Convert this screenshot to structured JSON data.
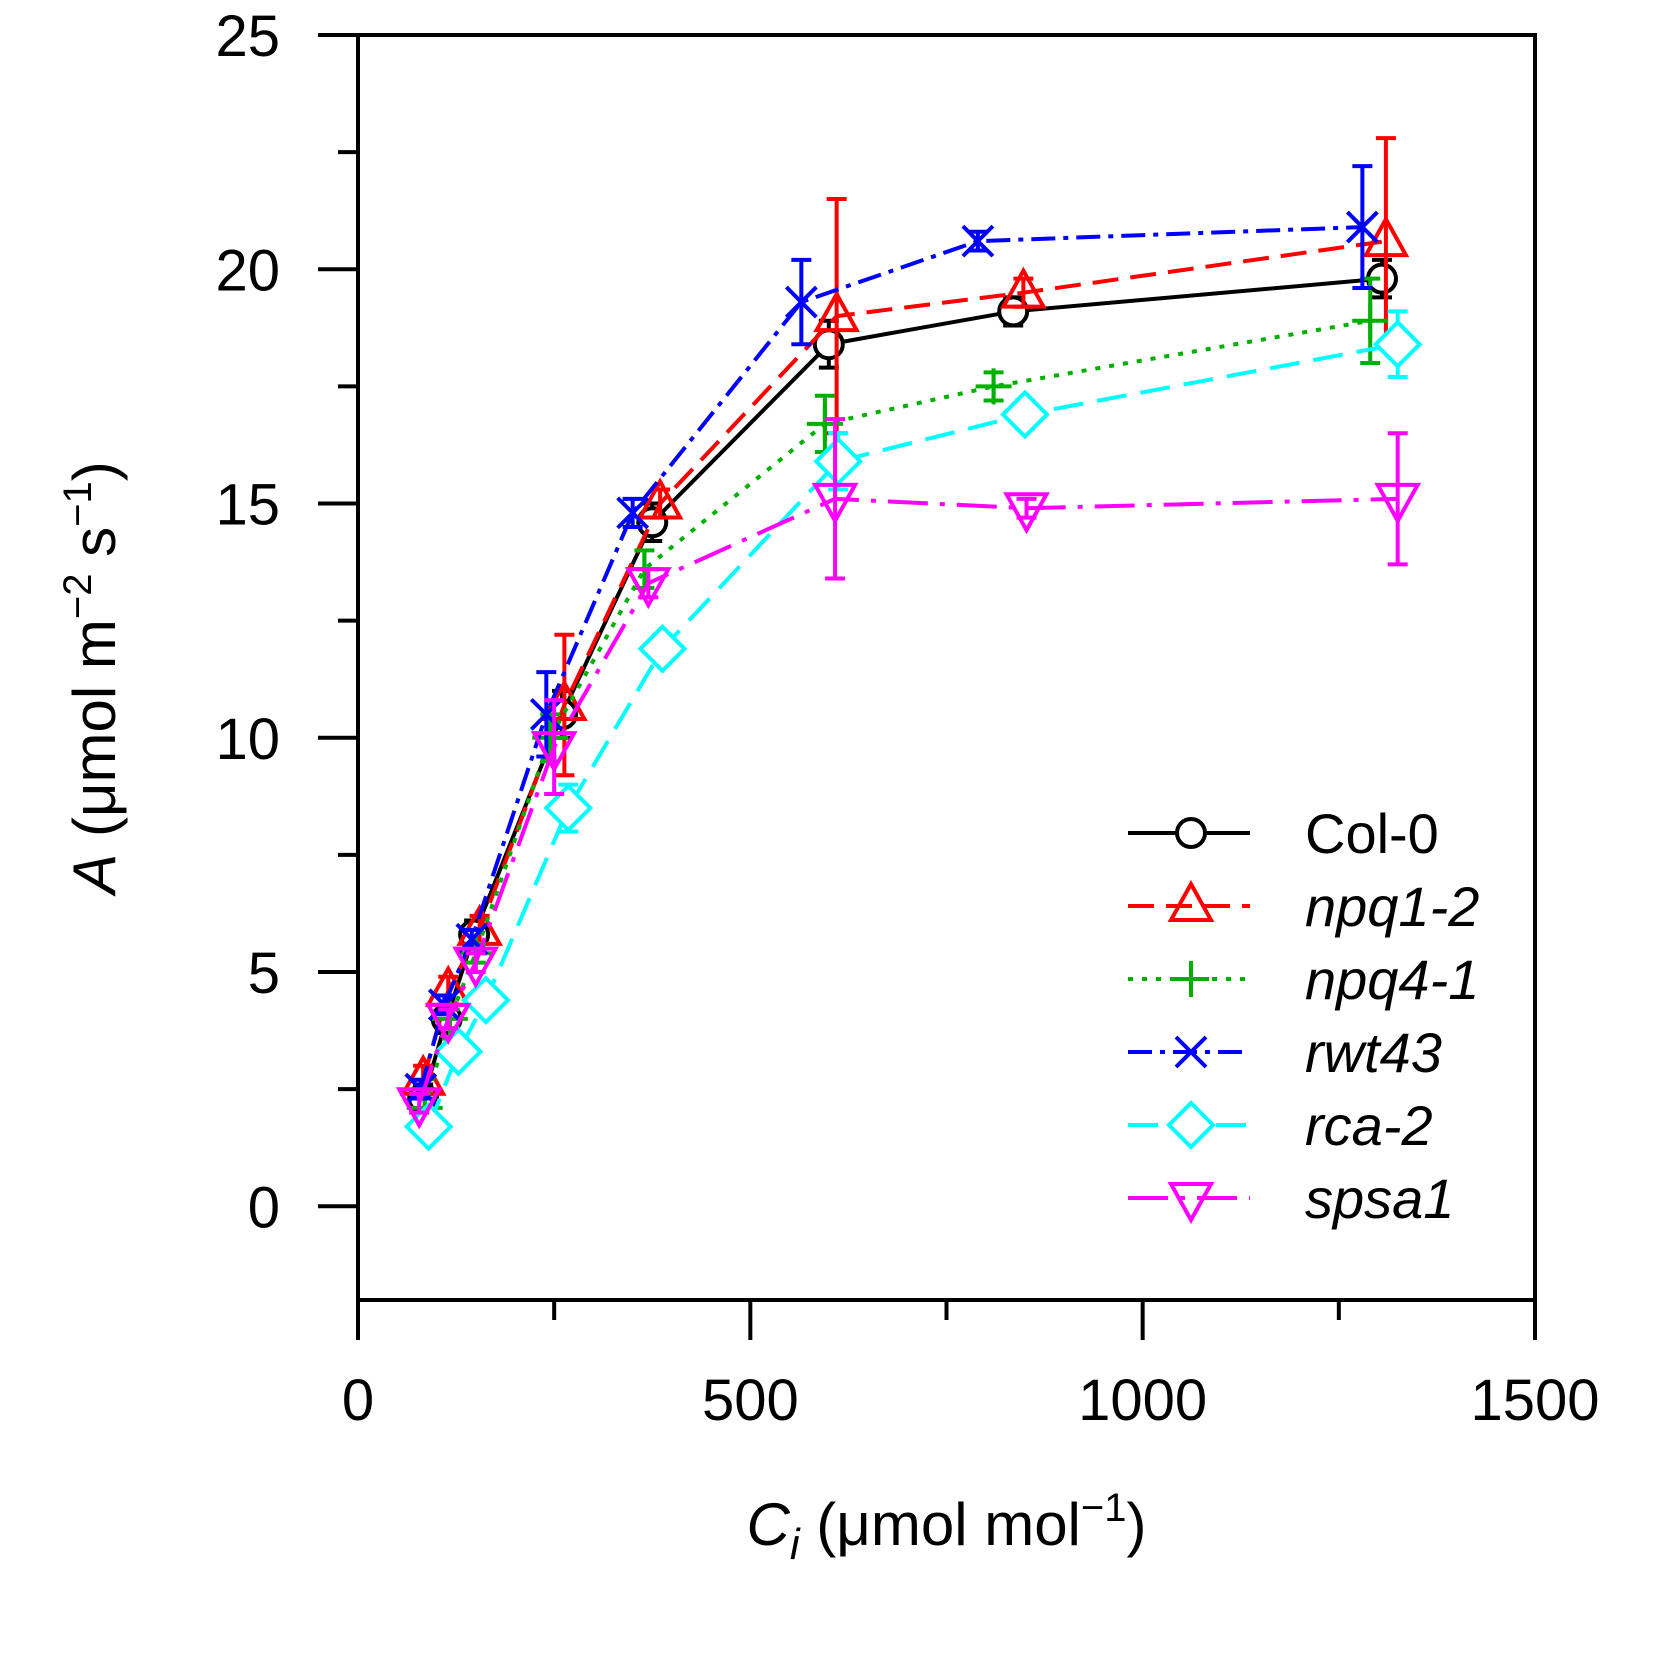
{
  "chart_data": {
    "type": "line",
    "x_axis": {
      "title_var": "C",
      "title_sub": "i",
      "title_unit_open": " (μmol mol",
      "title_unit_sup": "−1",
      "title_unit_close": ")",
      "range": [
        0,
        1500
      ],
      "ticks": [
        0,
        500,
        1000,
        1500
      ],
      "minor_ticks": [
        250,
        750,
        1250
      ]
    },
    "y_axis": {
      "title_var": "A",
      "title_unit_a": " (μmol m",
      "title_unit_sup1": "−2",
      "title_unit_b": " s",
      "title_unit_sup2": "−1",
      "title_unit_close": ")",
      "range": [
        -2,
        25
      ],
      "ticks": [
        0,
        5,
        10,
        15,
        20,
        25
      ],
      "minor_ticks": [
        2.5,
        7.5,
        12.5,
        17.5,
        22.5
      ]
    },
    "grid": false,
    "legend_position": "bottom-right",
    "series": [
      {
        "name": "Col-0",
        "italic": false,
        "color": "#000000",
        "marker": "circle",
        "dash": "",
        "x": [
          83,
          113,
          148,
          260,
          375,
          600,
          835,
          1305
        ],
        "y": [
          2.3,
          4.0,
          5.8,
          10.5,
          14.6,
          18.4,
          19.1,
          19.8
        ],
        "err": [
          0.3,
          0.3,
          0.3,
          0.5,
          0.4,
          0.5,
          0.3,
          0.4
        ]
      },
      {
        "name": "npq1-2",
        "italic": true,
        "color": "#ff0000",
        "marker": "triangle-up",
        "dash": "26,12",
        "x": [
          83,
          115,
          155,
          263,
          385,
          610,
          848,
          1310
        ],
        "y": [
          2.7,
          4.6,
          5.9,
          10.7,
          15.0,
          19.0,
          19.5,
          20.6
        ],
        "err": [
          0.3,
          0.3,
          0.3,
          1.5,
          0.3,
          2.5,
          0.3,
          2.2
        ]
      },
      {
        "name": "npq4-1",
        "italic": true,
        "color": "#00b000",
        "marker": "plus",
        "dash": "5,9",
        "x": [
          85,
          117,
          150,
          245,
          365,
          595,
          810,
          1290
        ],
        "y": [
          2.1,
          4.0,
          5.4,
          10.0,
          13.6,
          16.7,
          17.5,
          18.9
        ],
        "err": [
          0.2,
          0.2,
          0.2,
          0.5,
          0.4,
          0.6,
          0.3,
          0.9
        ]
      },
      {
        "name": "rwt43",
        "italic": true,
        "color": "#0000ff",
        "marker": "x",
        "dash": "24,8,5,8",
        "x": [
          80,
          110,
          145,
          240,
          350,
          565,
          790,
          1280
        ],
        "y": [
          2.5,
          4.3,
          5.7,
          10.5,
          14.8,
          19.3,
          20.6,
          20.9
        ],
        "err": [
          0.2,
          0.2,
          0.2,
          0.9,
          0.3,
          0.9,
          0.2,
          1.3
        ]
      },
      {
        "name": "rca-2",
        "italic": true,
        "color": "#00ffff",
        "marker": "diamond",
        "dash": "30,14",
        "x": [
          90,
          128,
          163,
          268,
          388,
          612,
          850,
          1325
        ],
        "y": [
          1.7,
          3.3,
          4.4,
          8.5,
          11.9,
          15.9,
          16.9,
          18.4
        ],
        "err": [
          0.2,
          0.2,
          0.2,
          0.5,
          0.3,
          0.6,
          0.3,
          0.7
        ]
      },
      {
        "name": "spsa1",
        "italic": true,
        "color": "#ff00ff",
        "marker": "triangle-down",
        "dash": "40,12,5,12",
        "x": [
          78,
          115,
          150,
          250,
          370,
          608,
          852,
          1325
        ],
        "y": [
          2.2,
          4.0,
          5.2,
          9.8,
          13.3,
          15.1,
          14.9,
          15.1
        ],
        "err": [
          0.2,
          0.2,
          0.2,
          1.0,
          0.3,
          1.7,
          0.2,
          1.4
        ]
      }
    ]
  }
}
